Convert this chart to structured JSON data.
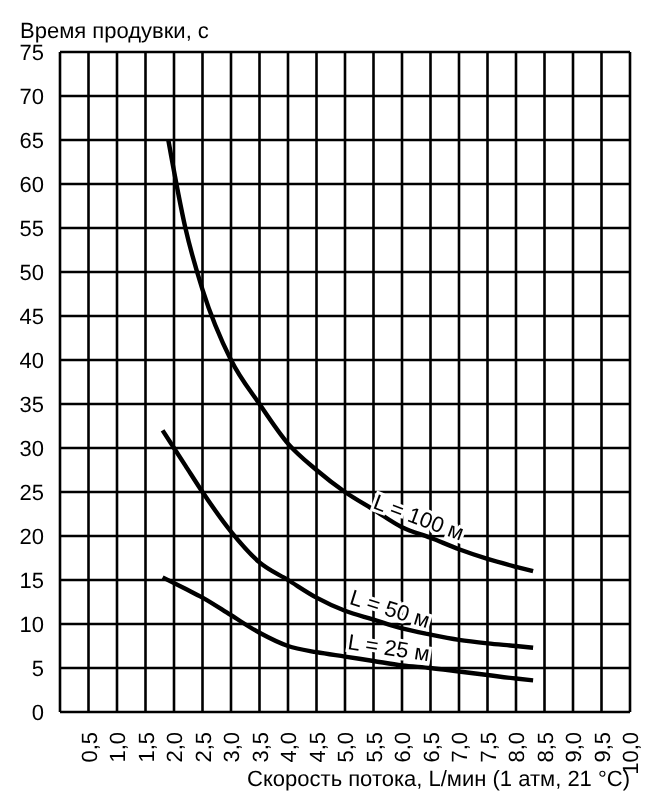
{
  "chart_data": {
    "type": "line",
    "ylabel": "Время продувки, с",
    "xlabel": "Скорость потока, L/мин (1 атм, 21 °C)",
    "series": [
      {
        "name": "L = 100 м",
        "color": "#000000",
        "x": [
          1.9,
          2.2,
          2.5,
          3,
          3.5,
          4,
          4.5,
          5,
          5.5,
          6,
          6.5,
          7,
          7.5,
          8,
          8.3
        ],
        "values": [
          65,
          55,
          48,
          40,
          35,
          30.5,
          27.5,
          25,
          23,
          21,
          19.8,
          18.5,
          17.4,
          16.5,
          16
        ]
      },
      {
        "name": "L = 50 м",
        "color": "#000000",
        "x": [
          1.8,
          2.2,
          2.5,
          3,
          3.5,
          4,
          4.5,
          5,
          5.5,
          6,
          6.5,
          7,
          7.5,
          8,
          8.3
        ],
        "values": [
          32,
          28,
          25,
          20.5,
          17,
          15,
          13,
          11.5,
          10.5,
          9.5,
          8.8,
          8.2,
          7.8,
          7.5,
          7.3
        ]
      },
      {
        "name": "L = 25 м",
        "color": "#000000",
        "x": [
          1.8,
          2.2,
          2.5,
          3,
          3.5,
          4,
          4.5,
          5,
          5.5,
          6,
          6.5,
          7,
          7.5,
          8,
          8.3
        ],
        "values": [
          15.3,
          14,
          13,
          11,
          9,
          7.5,
          6.8,
          6.3,
          5.8,
          5.3,
          5,
          4.6,
          4.2,
          3.8,
          3.6
        ]
      }
    ],
    "xlim": [
      0,
      10
    ],
    "xticks": [
      {
        "value": 0,
        "label": null
      },
      {
        "value": 0.5,
        "label": "0,5"
      },
      {
        "value": 1,
        "label": "1,0"
      },
      {
        "value": 1.5,
        "label": "1,5"
      },
      {
        "value": 2,
        "label": "2,0"
      },
      {
        "value": 2.5,
        "label": "2,5"
      },
      {
        "value": 3,
        "label": "3,0"
      },
      {
        "value": 3.5,
        "label": "3,5"
      },
      {
        "value": 4,
        "label": "4,0"
      },
      {
        "value": 4.5,
        "label": "4,5"
      },
      {
        "value": 5,
        "label": "5,0"
      },
      {
        "value": 5.5,
        "label": "5,5"
      },
      {
        "value": 6,
        "label": "6,0"
      },
      {
        "value": 6.5,
        "label": "6,5"
      },
      {
        "value": 7,
        "label": "7,0"
      },
      {
        "value": 7.5,
        "label": "7,5"
      },
      {
        "value": 8,
        "label": "8,0"
      },
      {
        "value": 8.5,
        "label": "8,5"
      },
      {
        "value": 9,
        "label": "9,0"
      },
      {
        "value": 9.5,
        "label": "9,5"
      },
      {
        "value": 10,
        "label": "10,0"
      }
    ],
    "ylim": [
      0,
      75
    ],
    "yticks": [
      0,
      5,
      10,
      15,
      20,
      25,
      30,
      35,
      40,
      45,
      50,
      55,
      60,
      65,
      70,
      75
    ],
    "grid": true,
    "legend": false,
    "marker": "none",
    "line_style": "solid"
  }
}
